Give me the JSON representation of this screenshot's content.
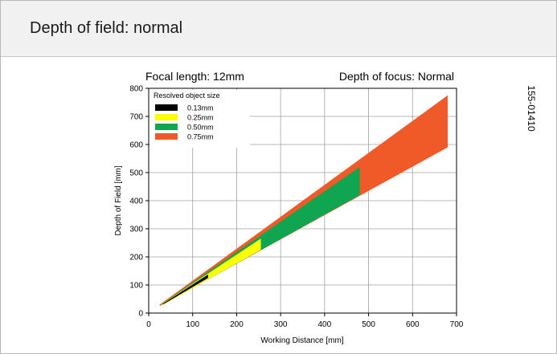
{
  "header": {
    "title": "Depth of field: normal"
  },
  "chart_data": {
    "type": "area",
    "title_left": "Focal length: 12mm",
    "title_right": "Depth of focus: Normal",
    "figure_id": "155-01410",
    "xlabel": "Working Distance [mm]",
    "ylabel": "Depth of Field [mm]",
    "xlim": [
      0,
      700
    ],
    "ylim": [
      0,
      800
    ],
    "xticks": [
      "0",
      "100",
      "200",
      "300",
      "400",
      "500",
      "600",
      "700"
    ],
    "yticks": [
      "0",
      "100",
      "200",
      "300",
      "400",
      "500",
      "600",
      "700",
      "800"
    ],
    "grid": true,
    "legend": {
      "title": "Resolved object size",
      "placement": "top-left"
    },
    "series": [
      {
        "name": "0.75mm",
        "color": "#f05a28",
        "x": [
          25,
          680
        ],
        "upper": [
          30,
          775
        ],
        "lower": [
          25,
          590
        ]
      },
      {
        "name": "0.50mm",
        "color": "#10a550",
        "x": [
          30,
          480
        ],
        "upper": [
          33,
          520
        ],
        "lower": [
          28,
          420
        ]
      },
      {
        "name": "0.25mm",
        "color": "#ffff00",
        "x": [
          30,
          255
        ],
        "upper": [
          32,
          265
        ],
        "lower": [
          28,
          225
        ]
      },
      {
        "name": "0.13mm",
        "color": "#000000",
        "x": [
          32,
          135
        ],
        "upper": [
          33,
          137
        ],
        "lower": [
          30,
          125
        ]
      }
    ],
    "legend_order": [
      "0.13mm",
      "0.25mm",
      "0.50mm",
      "0.75mm"
    ]
  }
}
